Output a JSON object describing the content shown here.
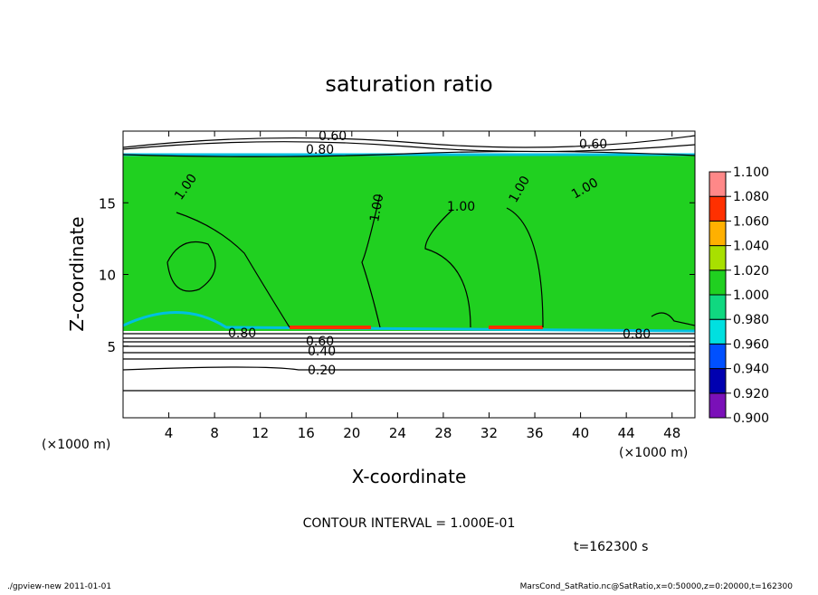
{
  "chart_data": {
    "type": "contour",
    "title": "saturation ratio",
    "xlabel": "X-coordinate",
    "ylabel": "Z-coordinate",
    "x_unit_left": "(×1000 m)",
    "x_unit_right": "(×1000 m)",
    "xlim": [
      0,
      50
    ],
    "xticks": [
      4,
      8,
      12,
      16,
      20,
      24,
      28,
      32,
      36,
      40,
      44,
      48
    ],
    "ylim": [
      0,
      20
    ],
    "yticks": [
      5,
      10,
      15
    ],
    "contour_interval": "CONTOUR INTERVAL = 1.000E-01",
    "time": "t=162300 s",
    "footer_left": "./gpview-new  2011-01-01",
    "footer_right": "MarsCond_SatRatio.nc@SatRatio,x=0:50000,z=0:20000,t=162300",
    "contour_labels": [
      "0.60",
      "0.80",
      "0.60",
      "1.00",
      "1.00",
      "1.00",
      "1.00",
      "1.00",
      "0.80",
      "0.60",
      "0.40",
      "0.20",
      "0.80"
    ],
    "colorbar": {
      "ticks": [
        {
          "value": 0.9,
          "label": "0.900"
        },
        {
          "value": 0.92,
          "label": "0.920"
        },
        {
          "value": 0.94,
          "label": "0.940"
        },
        {
          "value": 0.96,
          "label": "0.960"
        },
        {
          "value": 0.98,
          "label": "0.980"
        },
        {
          "value": 1.0,
          "label": "1.000"
        },
        {
          "value": 1.02,
          "label": "1.020"
        },
        {
          "value": 1.04,
          "label": "1.040"
        },
        {
          "value": 1.06,
          "label": "1.060"
        },
        {
          "value": 1.08,
          "label": "1.080"
        },
        {
          "value": 1.1,
          "label": "1.100"
        }
      ],
      "colors": [
        "#7a10b8",
        "#0000b0",
        "#0050ff",
        "#00e0e0",
        "#10d880",
        "#20d020",
        "#a8e000",
        "#ffb000",
        "#ff3000",
        "#ff8888"
      ]
    }
  }
}
